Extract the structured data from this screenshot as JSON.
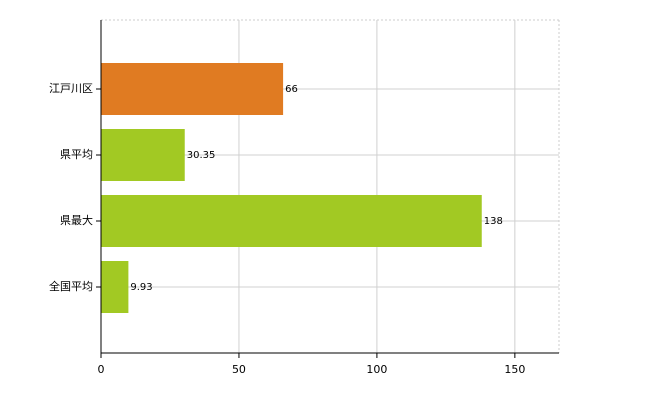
{
  "chart_data": {
    "type": "bar",
    "orientation": "horizontal",
    "categories": [
      "江戸川区",
      "県平均",
      "県最大",
      "全国平均"
    ],
    "values": [
      66,
      30.35,
      138,
      9.93
    ],
    "colors": [
      "#e07b22",
      "#a2c923",
      "#a2c923",
      "#a2c923"
    ],
    "xlim": [
      0,
      166
    ],
    "xticks": [
      0,
      50,
      100,
      150
    ],
    "grid": true
  }
}
